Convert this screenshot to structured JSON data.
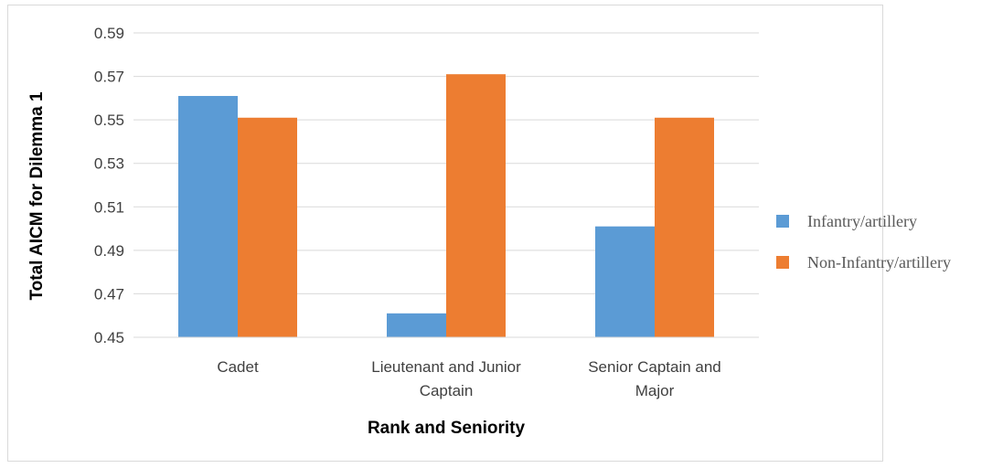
{
  "chart_data": {
    "type": "bar",
    "title": "",
    "xlabel": "Rank and Seniority",
    "ylabel": "Total AICM for Dilemma 1",
    "categories": [
      [
        "Cadet"
      ],
      [
        "Lieutenant and Junior",
        "Captain"
      ],
      [
        "Senior Captain and",
        "Major"
      ]
    ],
    "series": [
      {
        "name": "Infantry/artillery",
        "values": [
          0.561,
          0.461,
          0.501
        ],
        "color": "#5b9bd5"
      },
      {
        "name": "Non-Infantry/artillery",
        "values": [
          0.551,
          0.571,
          0.551
        ],
        "color": "#ed7d31"
      }
    ],
    "ylim": [
      0.45,
      0.59
    ],
    "yticks": [
      "0.45",
      "0.47",
      "0.49",
      "0.51",
      "0.53",
      "0.55",
      "0.57",
      "0.59"
    ],
    "grid": true,
    "legend_position": "right"
  }
}
